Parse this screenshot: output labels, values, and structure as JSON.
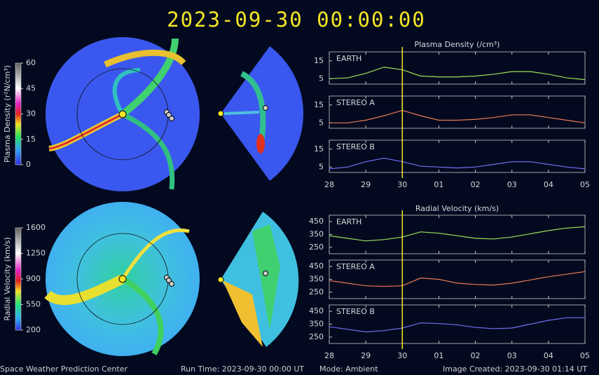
{
  "header": {
    "title": "2023-09-30  00:00:00"
  },
  "footer": {
    "org": "Space Weather Prediction Center",
    "run_time": "Run Time: 2023-09-30 00:00 UT",
    "mode": "Mode: Ambient",
    "created": "Image Created: 2023-09-30 01:14 UT"
  },
  "chart_data": [
    {
      "type": "colorbar",
      "label": "Plasma Density (r²N/cm³)",
      "ylim": [
        0,
        60
      ],
      "yticks": [
        0,
        15,
        30,
        45,
        60
      ]
    },
    {
      "type": "colorbar",
      "label": "Radial Velocity (km/s)",
      "ylim": [
        200,
        1600
      ],
      "yticks": [
        200,
        550,
        900,
        1250,
        1600
      ]
    },
    {
      "type": "line",
      "title": "Plasma Density (/cm³)",
      "xlim": [
        0,
        7
      ],
      "xticks": [
        {
          "value": 0,
          "label": "28"
        },
        {
          "value": 1,
          "label": "29"
        },
        {
          "value": 2,
          "label": "30"
        },
        {
          "value": 3,
          "label": "01"
        },
        {
          "value": 4,
          "label": "02"
        },
        {
          "value": 5,
          "label": "03"
        },
        {
          "value": 6,
          "label": "04"
        },
        {
          "value": 7,
          "label": "05"
        }
      ],
      "current_x": 2,
      "current_color": "#f5e625",
      "ylim": [
        2,
        20
      ],
      "yticks": [
        5,
        15
      ],
      "x": [
        0,
        0.5,
        1,
        1.5,
        2,
        2.5,
        3,
        3.5,
        4,
        4.5,
        5,
        5.5,
        6,
        6.5,
        7
      ],
      "series": [
        {
          "name": "EARTH",
          "color": "#9be05a",
          "values": [
            5,
            5.5,
            8,
            11.5,
            10,
            6.5,
            6,
            6,
            6.5,
            7.5,
            9,
            9,
            7.5,
            5.5,
            4.5
          ]
        },
        {
          "name": "STEREO A",
          "color": "#ec7a55",
          "values": [
            5,
            5,
            6.5,
            9,
            12,
            9,
            6.5,
            6.5,
            7,
            8,
            9.5,
            9.5,
            8,
            6.5,
            5
          ]
        },
        {
          "name": "STEREO B",
          "color": "#7070f2",
          "values": [
            4,
            5,
            8,
            10,
            8,
            5.5,
            5,
            4.5,
            5,
            6.5,
            8,
            8,
            6.5,
            5,
            4
          ]
        }
      ]
    },
    {
      "type": "line",
      "title": "Radial Velocity (km/s)",
      "xlim": [
        0,
        7
      ],
      "xticks": [
        {
          "value": 0,
          "label": "28"
        },
        {
          "value": 1,
          "label": "29"
        },
        {
          "value": 2,
          "label": "30"
        },
        {
          "value": 3,
          "label": "01"
        },
        {
          "value": 4,
          "label": "02"
        },
        {
          "value": 5,
          "label": "03"
        },
        {
          "value": 6,
          "label": "04"
        },
        {
          "value": 7,
          "label": "05"
        }
      ],
      "current_x": 2,
      "current_color": "#f5e625",
      "ylim": [
        200,
        500
      ],
      "yticks": [
        250,
        350,
        450
      ],
      "x": [
        0,
        0.5,
        1,
        1.5,
        2,
        2.5,
        3,
        3.5,
        4,
        4.5,
        5,
        5.5,
        6,
        6.5,
        7
      ],
      "series": [
        {
          "name": "EARTH",
          "color": "#9be05a",
          "values": [
            340,
            320,
            300,
            310,
            330,
            370,
            360,
            340,
            320,
            315,
            330,
            355,
            380,
            400,
            410
          ]
        },
        {
          "name": "STEREO A",
          "color": "#ec7a55",
          "values": [
            340,
            320,
            300,
            295,
            300,
            360,
            350,
            320,
            310,
            305,
            320,
            345,
            370,
            390,
            410
          ]
        },
        {
          "name": "STEREO B",
          "color": "#7070f2",
          "values": [
            330,
            310,
            290,
            300,
            320,
            360,
            355,
            345,
            325,
            315,
            320,
            350,
            380,
            400,
            400
          ]
        }
      ]
    }
  ]
}
